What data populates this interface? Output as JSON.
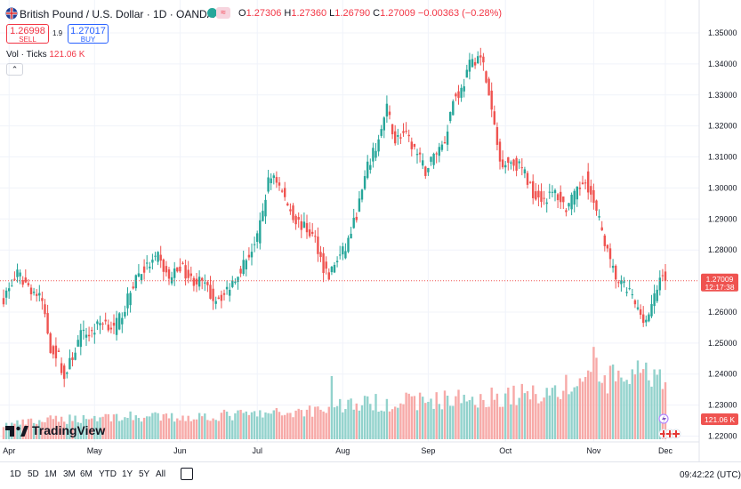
{
  "header": {
    "title": "British Pound / U.S. Dollar · 1D · OANDA",
    "tpill": "≈",
    "ohlc": {
      "open_label": "O",
      "open": "1.27306",
      "high_label": "H",
      "high": "1.27360",
      "low_label": "L",
      "low": "1.26790",
      "close_label": "C",
      "close": "1.27009",
      "change": "−0.00363 (−0.28%)"
    }
  },
  "trade": {
    "sell_price": "1.26998",
    "sell_label": "SELL",
    "spread": "1.9",
    "buy_price": "1.27017",
    "buy_label": "BUY"
  },
  "volume_legend": {
    "label": "Vol · Ticks",
    "value": "121.06 K",
    "collapse": "⌃"
  },
  "brand": {
    "name": "TradingView"
  },
  "price_axis": {
    "ticks": [
      "1.35000",
      "1.34000",
      "1.33000",
      "1.32000",
      "1.31000",
      "1.30000",
      "1.29000",
      "1.28000",
      "1.26000",
      "1.25000",
      "1.24000",
      "1.23000",
      "1.22000"
    ],
    "last_price": "1.27009",
    "countdown": "12:17:38",
    "volume_tag": "121.06 K"
  },
  "time_axis": {
    "ticks": [
      "Apr",
      "May",
      "Jun",
      "Jul",
      "Aug",
      "Sep",
      "Oct",
      "Nov",
      "Dec"
    ]
  },
  "bottombar": {
    "ranges": [
      "1D",
      "5D",
      "1M",
      "3M",
      "6M",
      "YTD",
      "1Y",
      "5Y",
      "All"
    ],
    "clock": "09:42:22 (UTC)"
  },
  "colors": {
    "up": "#26a69a",
    "down": "#ef5350",
    "grid": "#f0f3fa",
    "accent": "#2962ff"
  },
  "chart_data": {
    "type": "candlestick",
    "symbol": "GBPUSD",
    "interval": "1D",
    "ylim": [
      1.219,
      1.352
    ],
    "volume_ylim": [
      0,
      250
    ],
    "last_price": 1.27009,
    "anchors": [
      [
        0,
        1.2645
      ],
      [
        5,
        1.272
      ],
      [
        10,
        1.2675
      ],
      [
        14,
        1.2635
      ],
      [
        17,
        1.2485
      ],
      [
        20,
        1.2455
      ],
      [
        22,
        1.2385
      ],
      [
        24,
        1.2435
      ],
      [
        28,
        1.2525
      ],
      [
        32,
        1.2535
      ],
      [
        36,
        1.2575
      ],
      [
        40,
        1.2545
      ],
      [
        44,
        1.2615
      ],
      [
        48,
        1.2715
      ],
      [
        52,
        1.2745
      ],
      [
        56,
        1.2775
      ],
      [
        60,
        1.2705
      ],
      [
        64,
        1.275
      ],
      [
        68,
        1.2705
      ],
      [
        72,
        1.2695
      ],
      [
        76,
        1.2645
      ],
      [
        80,
        1.2655
      ],
      [
        84,
        1.2715
      ],
      [
        88,
        1.277
      ],
      [
        92,
        1.2835
      ],
      [
        96,
        1.302
      ],
      [
        98,
        1.3045
      ],
      [
        102,
        1.2965
      ],
      [
        106,
        1.2895
      ],
      [
        110,
        1.2865
      ],
      [
        113,
        1.2835
      ],
      [
        116,
        1.2745
      ],
      [
        118,
        1.2715
      ],
      [
        120,
        1.2755
      ],
      [
        124,
        1.2805
      ],
      [
        128,
        1.2915
      ],
      [
        132,
        1.3065
      ],
      [
        136,
        1.3155
      ],
      [
        139,
        1.3255
      ],
      [
        142,
        1.3155
      ],
      [
        145,
        1.3175
      ],
      [
        149,
        1.3125
      ],
      [
        153,
        1.3055
      ],
      [
        156,
        1.3105
      ],
      [
        160,
        1.3155
      ],
      [
        163,
        1.3285
      ],
      [
        166,
        1.3315
      ],
      [
        169,
        1.3395
      ],
      [
        172,
        1.3425
      ],
      [
        174,
        1.3395
      ],
      [
        176,
        1.3295
      ],
      [
        178,
        1.3195
      ],
      [
        180,
        1.3085
      ],
      [
        184,
        1.3085
      ],
      [
        188,
        1.3065
      ],
      [
        192,
        1.2985
      ],
      [
        196,
        1.2965
      ],
      [
        200,
        1.2985
      ],
      [
        204,
        1.2935
      ],
      [
        208,
        1.2985
      ],
      [
        211,
        1.3035
      ],
      [
        214,
        1.2945
      ],
      [
        217,
        1.2865
      ],
      [
        220,
        1.2755
      ],
      [
        223,
        1.2695
      ],
      [
        227,
        1.2665
      ],
      [
        230,
        1.2605
      ],
      [
        233,
        1.2575
      ],
      [
        235,
        1.2615
      ],
      [
        238,
        1.2705
      ],
      [
        239,
        1.2735
      ],
      [
        240,
        1.2701
      ]
    ],
    "volume_anchors": [
      [
        0,
        25
      ],
      [
        20,
        35
      ],
      [
        40,
        40
      ],
      [
        60,
        38
      ],
      [
        80,
        42
      ],
      [
        100,
        45
      ],
      [
        118,
        55
      ],
      [
        119,
        105
      ],
      [
        120,
        60
      ],
      [
        140,
        65
      ],
      [
        160,
        70
      ],
      [
        180,
        75
      ],
      [
        200,
        85
      ],
      [
        210,
        100
      ],
      [
        215,
        150
      ],
      [
        216,
        100
      ],
      [
        230,
        115
      ],
      [
        240,
        95
      ]
    ],
    "x_ticks": [
      [
        "Apr",
        2
      ],
      [
        "May",
        33
      ],
      [
        "Jun",
        64
      ],
      [
        "Jul",
        92
      ],
      [
        "Aug",
        123
      ],
      [
        "Sep",
        154
      ],
      [
        "Oct",
        182
      ],
      [
        "Nov",
        214
      ],
      [
        "Dec",
        240
      ]
    ],
    "y_ticks": [
      1.35,
      1.34,
      1.33,
      1.32,
      1.31,
      1.3,
      1.29,
      1.28,
      1.26,
      1.25,
      1.24,
      1.23,
      1.22
    ]
  }
}
